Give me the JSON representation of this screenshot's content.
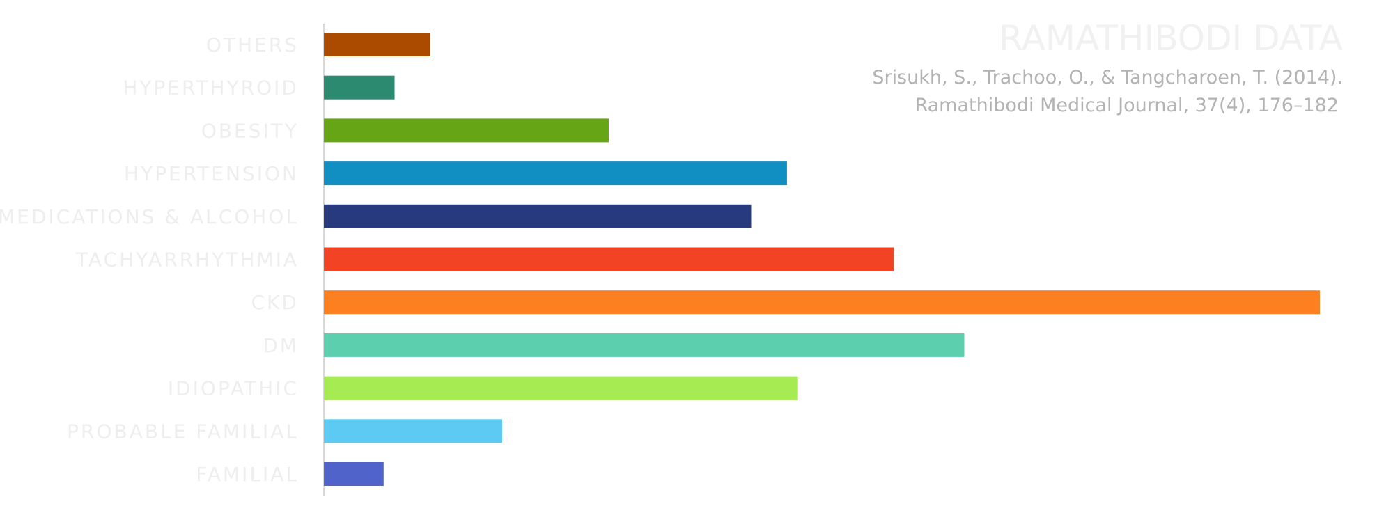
{
  "chart_data": {
    "type": "bar",
    "orientation": "horizontal",
    "title": "RAMATHIBODI DATA",
    "subtitle_lines": [
      "Srisukh, S., Trachoo, O., & Tangcharoen, T. (2014).",
      "Ramathibodi Medical Journal, 37(4), 176–182"
    ],
    "xlabel": "",
    "ylabel": "",
    "xlim": [
      0,
      1
    ],
    "grid": false,
    "legend": "none",
    "categories": [
      "OTHERS",
      "HYPERTHYROID",
      "OBESITY",
      "HYPERTENSION",
      "MEDICATIONS & ALCOHOL",
      "TACHYARRHYTHMIA",
      "CKD",
      "DM",
      "IDIOPATHIC",
      "PROBABLE FAMILIAL",
      "FAMILIAL"
    ],
    "values": [
      0.107,
      0.071,
      0.286,
      0.465,
      0.429,
      0.572,
      1.0,
      0.643,
      0.476,
      0.179,
      0.06
    ],
    "colors": [
      "#ab4b00",
      "#2b8a70",
      "#66a616",
      "#118ec2",
      "#273a7e",
      "#f24425",
      "#fc8020",
      "#5bcfae",
      "#a6eb52",
      "#5ccaf3",
      "#4f63cb"
    ],
    "axis_color": "#d9d9d9"
  }
}
